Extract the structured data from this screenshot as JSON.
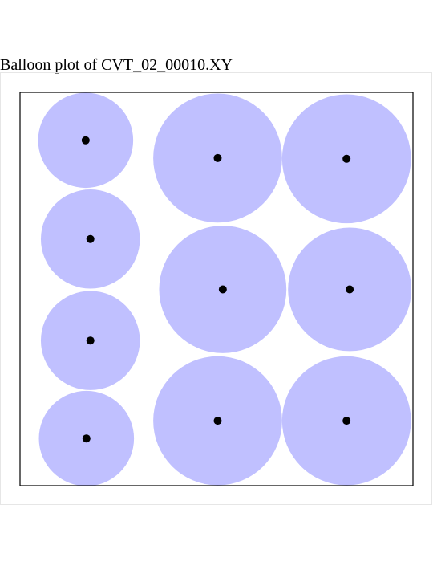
{
  "title": "Balloon plot of CVT_02_00010.XY",
  "colors": {
    "balloon_fill": "#c0c0ff",
    "generator_point": "#000000",
    "box_stroke": "#000000"
  },
  "chart_data": {
    "type": "scatter",
    "title": "Balloon plot of CVT_02_00010.XY",
    "xlim": [
      0,
      1
    ],
    "ylim": [
      0,
      1
    ],
    "grid": false,
    "legend": "none",
    "points": [
      {
        "x": 0.167,
        "y": 0.878,
        "radius": 0.121
      },
      {
        "x": 0.179,
        "y": 0.627,
        "radius": 0.126
      },
      {
        "x": 0.179,
        "y": 0.369,
        "radius": 0.126
      },
      {
        "x": 0.169,
        "y": 0.12,
        "radius": 0.121
      },
      {
        "x": 0.503,
        "y": 0.833,
        "radius": 0.164
      },
      {
        "x": 0.516,
        "y": 0.499,
        "radius": 0.162
      },
      {
        "x": 0.503,
        "y": 0.165,
        "radius": 0.164
      },
      {
        "x": 0.831,
        "y": 0.831,
        "radius": 0.164
      },
      {
        "x": 0.839,
        "y": 0.499,
        "radius": 0.157
      },
      {
        "x": 0.831,
        "y": 0.165,
        "radius": 0.164
      }
    ]
  }
}
